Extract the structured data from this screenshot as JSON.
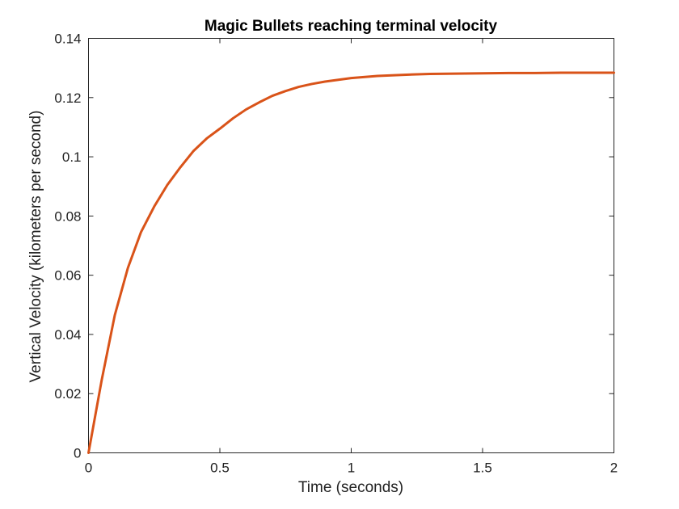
{
  "chart_data": {
    "type": "line",
    "title": "Magic Bullets reaching terminal velocity",
    "xlabel": "Time (seconds)",
    "ylabel": "Vertical Velocity (kilometers per second)",
    "xlim": [
      0,
      2
    ],
    "ylim": [
      0,
      0.14
    ],
    "xticks": [
      0,
      0.5,
      1,
      1.5,
      2
    ],
    "xtick_labels": [
      "0",
      "0.5",
      "1",
      "1.5",
      "2"
    ],
    "yticks": [
      0,
      0.02,
      0.04,
      0.06,
      0.08,
      0.1,
      0.12,
      0.14
    ],
    "ytick_labels": [
      "0",
      "0.02",
      "0.04",
      "0.06",
      "0.08",
      "0.1",
      "0.12",
      "0.14"
    ],
    "grid": false,
    "line_color": "#d95319",
    "series": [
      {
        "x": [
          0,
          0.05,
          0.1,
          0.15,
          0.2,
          0.25,
          0.3,
          0.35,
          0.4,
          0.45,
          0.5,
          0.55,
          0.6,
          0.65,
          0.7,
          0.75,
          0.8,
          0.85,
          0.9,
          1.0,
          1.1,
          1.2,
          1.3,
          1.4,
          1.5,
          1.6,
          1.7,
          1.8,
          1.9,
          2.0
        ],
        "y": [
          0,
          0.0245,
          0.0465,
          0.0625,
          0.0746,
          0.0832,
          0.0905,
          0.0965,
          0.102,
          0.1062,
          0.1095,
          0.113,
          0.116,
          0.1184,
          0.1206,
          0.1222,
          0.1236,
          0.1246,
          0.1254,
          0.1266,
          0.1273,
          0.1277,
          0.128,
          0.1281,
          0.1282,
          0.1283,
          0.1283,
          0.1284,
          0.1284,
          0.1284
        ]
      }
    ]
  }
}
